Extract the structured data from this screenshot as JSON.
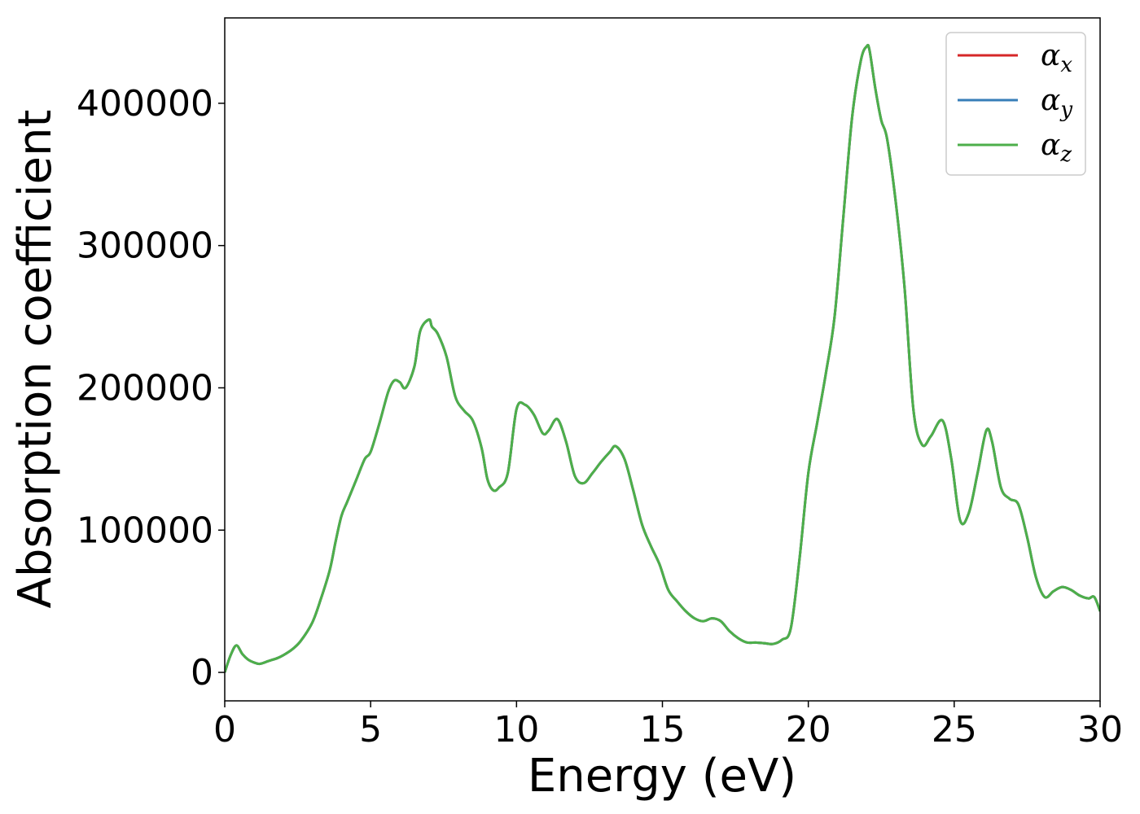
{
  "chart_data": {
    "type": "line",
    "title": "",
    "xlabel": "Energy (eV)",
    "ylabel": "Absorption coefficient",
    "xlim": [
      0,
      30
    ],
    "ylim": [
      -20000,
      460000
    ],
    "xticks": [
      0,
      5,
      10,
      15,
      20,
      25,
      30
    ],
    "xtick_labels": [
      "0",
      "5",
      "10",
      "15",
      "20",
      "25",
      "30"
    ],
    "yticks": [
      0,
      100000,
      200000,
      300000,
      400000
    ],
    "ytick_labels": [
      "0",
      "100000",
      "200000",
      "300000",
      "400000"
    ],
    "grid": false,
    "legend_position": "top-right",
    "x": [
      0.0,
      0.2,
      0.4,
      0.6,
      0.8,
      1.0,
      1.2,
      1.5,
      1.8,
      2.0,
      2.3,
      2.6,
      3.0,
      3.3,
      3.6,
      3.8,
      4.0,
      4.2,
      4.5,
      4.8,
      5.0,
      5.3,
      5.6,
      5.8,
      6.0,
      6.2,
      6.5,
      6.7,
      7.0,
      7.1,
      7.3,
      7.6,
      7.9,
      8.2,
      8.5,
      8.8,
      9.0,
      9.2,
      9.4,
      9.7,
      10.0,
      10.3,
      10.6,
      10.9,
      11.1,
      11.4,
      11.7,
      12.0,
      12.3,
      12.6,
      12.9,
      13.2,
      13.4,
      13.7,
      14.0,
      14.3,
      14.6,
      14.9,
      15.2,
      15.5,
      15.8,
      16.1,
      16.4,
      16.7,
      17.0,
      17.3,
      17.6,
      17.9,
      18.2,
      18.5,
      18.8,
      19.1,
      19.4,
      19.7,
      20.0,
      20.3,
      20.6,
      20.9,
      21.2,
      21.5,
      21.8,
      22.0,
      22.1,
      22.3,
      22.5,
      22.7,
      23.0,
      23.3,
      23.6,
      23.9,
      24.2,
      24.6,
      24.9,
      25.2,
      25.5,
      25.8,
      26.1,
      26.3,
      26.6,
      26.9,
      27.2,
      27.5,
      27.8,
      28.1,
      28.4,
      28.7,
      29.0,
      29.3,
      29.6,
      29.8,
      30.0
    ],
    "series": [
      {
        "name": "α_x",
        "name_base": "α",
        "name_sub": "x",
        "color": "#d62728",
        "values": [
          0,
          12000,
          19000,
          13000,
          9000,
          7000,
          6000,
          8000,
          10000,
          12000,
          16000,
          22000,
          35000,
          52000,
          72000,
          92000,
          110000,
          120000,
          135000,
          150000,
          155000,
          175000,
          197000,
          205000,
          204000,
          200000,
          215000,
          240000,
          248000,
          243000,
          238000,
          222000,
          194000,
          184000,
          177000,
          158000,
          136000,
          128000,
          130000,
          140000,
          185000,
          188000,
          181000,
          168000,
          170000,
          178000,
          162000,
          138000,
          133000,
          140000,
          148000,
          155000,
          159000,
          150000,
          128000,
          104000,
          89000,
          76000,
          58000,
          50000,
          43000,
          38000,
          36000,
          38000,
          36000,
          29000,
          24000,
          21000,
          21000,
          20500,
          20000,
          23000,
          31000,
          80000,
          140000,
          175000,
          210000,
          250000,
          320000,
          390000,
          430000,
          440000,
          437000,
          410000,
          388000,
          375000,
          330000,
          270000,
          185000,
          160000,
          166000,
          177000,
          150000,
          107000,
          112000,
          140000,
          170000,
          162000,
          130000,
          122000,
          118000,
          95000,
          67000,
          53000,
          57000,
          60000,
          58000,
          54000,
          52000,
          53000,
          43000
        ]
      },
      {
        "name": "α_y",
        "name_base": "α",
        "name_sub": "y",
        "color": "#377eb8",
        "values": [
          0,
          12000,
          19000,
          13000,
          9000,
          7000,
          6000,
          8000,
          10000,
          12000,
          16000,
          22000,
          35000,
          52000,
          72000,
          92000,
          110000,
          120000,
          135000,
          150000,
          155000,
          175000,
          197000,
          205000,
          204000,
          200000,
          215000,
          240000,
          248000,
          243000,
          238000,
          222000,
          194000,
          184000,
          177000,
          158000,
          136000,
          128000,
          130000,
          140000,
          185000,
          188000,
          181000,
          168000,
          170000,
          178000,
          162000,
          138000,
          133000,
          140000,
          148000,
          155000,
          159000,
          150000,
          128000,
          104000,
          89000,
          76000,
          58000,
          50000,
          43000,
          38000,
          36000,
          38000,
          36000,
          29000,
          24000,
          21000,
          21000,
          20500,
          20000,
          23000,
          31000,
          80000,
          140000,
          175000,
          210000,
          250000,
          320000,
          390000,
          430000,
          440000,
          437000,
          410000,
          388000,
          375000,
          330000,
          270000,
          185000,
          160000,
          166000,
          177000,
          150000,
          107000,
          112000,
          140000,
          170000,
          162000,
          130000,
          122000,
          118000,
          95000,
          67000,
          53000,
          57000,
          60000,
          58000,
          54000,
          52000,
          53000,
          43000
        ]
      },
      {
        "name": "α_z",
        "name_base": "α",
        "name_sub": "z",
        "color": "#4daf4a",
        "values": [
          0,
          12000,
          19000,
          13000,
          9000,
          7000,
          6000,
          8000,
          10000,
          12000,
          16000,
          22000,
          35000,
          52000,
          72000,
          92000,
          110000,
          120000,
          135000,
          150000,
          155000,
          175000,
          197000,
          205000,
          204000,
          200000,
          215000,
          240000,
          248000,
          243000,
          238000,
          222000,
          194000,
          184000,
          177000,
          158000,
          136000,
          128000,
          130000,
          140000,
          185000,
          188000,
          181000,
          168000,
          170000,
          178000,
          162000,
          138000,
          133000,
          140000,
          148000,
          155000,
          159000,
          150000,
          128000,
          104000,
          89000,
          76000,
          58000,
          50000,
          43000,
          38000,
          36000,
          38000,
          36000,
          29000,
          24000,
          21000,
          21000,
          20500,
          20000,
          23000,
          31000,
          80000,
          140000,
          175000,
          210000,
          250000,
          320000,
          390000,
          430000,
          440000,
          437000,
          410000,
          388000,
          375000,
          330000,
          270000,
          185000,
          160000,
          166000,
          177000,
          150000,
          107000,
          112000,
          140000,
          170000,
          162000,
          130000,
          122000,
          118000,
          95000,
          67000,
          53000,
          57000,
          60000,
          58000,
          54000,
          52000,
          53000,
          43000
        ]
      }
    ]
  }
}
